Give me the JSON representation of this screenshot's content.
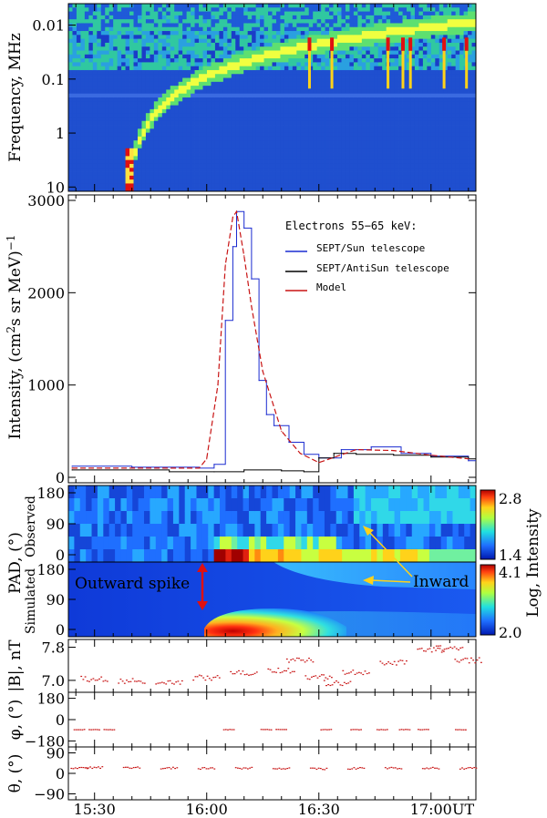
{
  "chart_data": [
    {
      "id": "spectrogram",
      "type": "heatmap",
      "ylabel": "Frequency, MHz",
      "yticks": [
        "0.01",
        "0.1",
        "1",
        "10"
      ],
      "ytick_values": [
        0.01,
        0.1,
        1,
        10
      ],
      "yscale": "log-inverted",
      "ylim": [
        12,
        0.004
      ],
      "description_series": "radio type III burst drifting from 10 MHz to 0.1 MHz",
      "burst_start_time": "15:38",
      "colors": {
        "bg": "#1f4fcf",
        "band": "#2fc8b0",
        "burst": "#ffd21a",
        "hot": "#e01010"
      }
    },
    {
      "id": "intensity",
      "type": "line",
      "ylabel": "Intensity, (cm",
      "ylabel_parts": [
        "Intensity, (cm",
        "2",
        "s sr MeV)",
        "−1"
      ],
      "ylim": [
        0,
        3000
      ],
      "yticks": [
        "0",
        "1000",
        "2000",
        "3000"
      ],
      "legend_title": "Electrons 55−65 keV:",
      "legend_location": "upper-right",
      "series": [
        {
          "name": "SEPT/Sun telescope",
          "color": "#1a2bd0",
          "style": "steps",
          "t": [
            "15:24",
            "15:40",
            "15:58",
            "16:02",
            "16:05",
            "16:07",
            "16:08",
            "16:10",
            "16:12",
            "16:14",
            "16:16",
            "16:18",
            "16:22",
            "16:26",
            "16:30",
            "16:36",
            "16:44",
            "16:52",
            "17:00",
            "17:10"
          ],
          "values": [
            120,
            110,
            100,
            140,
            1700,
            2500,
            2880,
            2700,
            2150,
            1050,
            680,
            560,
            380,
            250,
            210,
            300,
            330,
            260,
            230,
            180
          ]
        },
        {
          "name": "SEPT/AntiSun telescope",
          "color": "#000000",
          "style": "steps",
          "t": [
            "15:24",
            "15:50",
            "16:02",
            "16:10",
            "16:20",
            "16:26",
            "16:30",
            "16:34",
            "16:40",
            "16:50",
            "17:00",
            "17:10"
          ],
          "values": [
            80,
            60,
            60,
            80,
            70,
            60,
            210,
            260,
            250,
            240,
            220,
            200
          ]
        },
        {
          "name": "Model",
          "color": "#c81414",
          "style": "dashed",
          "t": [
            "15:24",
            "15:58",
            "16:00",
            "16:03",
            "16:05",
            "16:07",
            "16:08",
            "16:10",
            "16:12",
            "16:15",
            "16:20",
            "16:25",
            "16:30",
            "16:40",
            "16:50",
            "17:00",
            "17:10"
          ],
          "values": [
            100,
            100,
            200,
            1000,
            2300,
            2820,
            2880,
            2400,
            1850,
            1150,
            500,
            260,
            160,
            300,
            290,
            240,
            200
          ]
        }
      ]
    },
    {
      "id": "pad",
      "type": "heatmap",
      "ylabel": "PAD, (°)",
      "observed_label": "Observed",
      "simulated_label": "Simulated",
      "yticks": [
        "0",
        "90",
        "180"
      ],
      "ylim": [
        0,
        180
      ],
      "observed_colorbar": {
        "min": "1.4",
        "max": "2.8"
      },
      "simulated_colorbar": {
        "min": "2.0",
        "max": "4.1"
      },
      "colorbar_label": "Log, Intensity",
      "annotations": [
        {
          "text": "Outward spike",
          "color": "#e01010"
        },
        {
          "text": "Inward",
          "color": "#ffd21a"
        }
      ]
    },
    {
      "id": "absB",
      "type": "scatter",
      "ylabel": "|B|, nT",
      "ylim": [
        6.8,
        7.9
      ],
      "yticks": [
        "7.0",
        "7.8"
      ],
      "color": "#c81414",
      "t": [
        "15:30",
        "15:40",
        "15:50",
        "16:00",
        "16:10",
        "16:20",
        "16:25",
        "16:30",
        "16:35",
        "16:40",
        "16:50",
        "17:00",
        "17:05",
        "17:10"
      ],
      "values": [
        7.05,
        7.0,
        6.97,
        7.08,
        7.2,
        7.25,
        7.5,
        7.1,
        6.95,
        7.2,
        7.45,
        7.75,
        7.8,
        7.5
      ]
    },
    {
      "id": "phi",
      "type": "scatter",
      "ylabel": "φ, (°)",
      "ylim": [
        -200,
        200
      ],
      "yticks": [
        "180",
        "0",
        "−180"
      ],
      "color": "#c81414",
      "t": [
        "15:26",
        "15:30",
        "15:34",
        "16:06",
        "16:16",
        "16:20",
        "16:32",
        "16:40",
        "16:47",
        "16:53",
        "16:58",
        "17:08"
      ],
      "values": [
        -80,
        -80,
        -80,
        -80,
        -80,
        -80,
        -80,
        -80,
        -80,
        -80,
        -80,
        -80
      ]
    },
    {
      "id": "theta",
      "type": "scatter",
      "ylabel": "θ, (°)",
      "ylim": [
        -100,
        100
      ],
      "yticks": [
        "90",
        "0",
        "−90"
      ],
      "color": "#c81414",
      "t": [
        "15:26",
        "15:30",
        "15:40",
        "15:50",
        "16:00",
        "16:10",
        "16:20",
        "16:30",
        "16:40",
        "16:50",
        "17:00",
        "17:10"
      ],
      "values": [
        25,
        28,
        27,
        26,
        24,
        25,
        23,
        22,
        24,
        26,
        25,
        24
      ]
    }
  ],
  "xaxis": {
    "start": "15:23",
    "end": "17:12",
    "ticks": [
      "15:30",
      "16:00",
      "16:30",
      "17:00"
    ],
    "unit": "UT"
  }
}
